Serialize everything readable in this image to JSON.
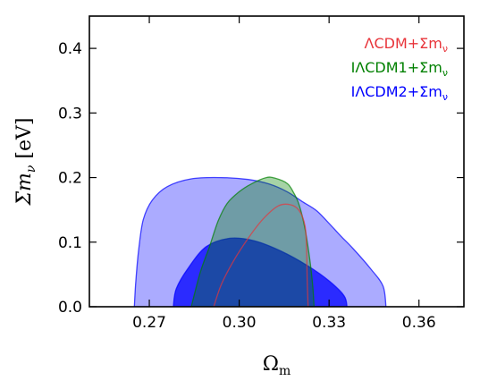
{
  "chart_data": {
    "type": "contour",
    "xlabel": "Ωm",
    "ylabel": "Σmν [eV]",
    "xlim": [
      0.25,
      0.375
    ],
    "ylim": [
      0.0,
      0.45
    ],
    "xticks": [
      0.27,
      0.3,
      0.33,
      0.36
    ],
    "xtick_labels": [
      "0.27",
      "0.30",
      "0.33",
      "0.36"
    ],
    "yticks": [
      0.0,
      0.1,
      0.2,
      0.3,
      0.4
    ],
    "ytick_labels": [
      "0.0",
      "0.1",
      "0.2",
      "0.3",
      "0.4"
    ],
    "grid": false,
    "legend_position": "top-right",
    "series": [
      {
        "name": "IΛCDM2+Σmν",
        "label_parts": [
          "IΛCDM2+Σm",
          "ν"
        ],
        "color": "#0000ff",
        "contours": [
          {
            "level": "95%",
            "opacity": 0.33,
            "points": [
              [
                0.265,
                0.0
              ],
              [
                0.2655,
                0.04
              ],
              [
                0.2665,
                0.09
              ],
              [
                0.268,
                0.135
              ],
              [
                0.271,
                0.165
              ],
              [
                0.276,
                0.186
              ],
              [
                0.284,
                0.198
              ],
              [
                0.294,
                0.2
              ],
              [
                0.303,
                0.197
              ],
              [
                0.31,
                0.19
              ],
              [
                0.316,
                0.178
              ],
              [
                0.321,
                0.163
              ],
              [
                0.326,
                0.148
              ],
              [
                0.331,
                0.124
              ],
              [
                0.334,
                0.109
              ],
              [
                0.338,
                0.09
              ],
              [
                0.344,
                0.058
              ],
              [
                0.348,
                0.032
              ],
              [
                0.349,
                0.0
              ]
            ]
          },
          {
            "level": "68%",
            "opacity": 0.75,
            "points": [
              [
                0.278,
                0.0
              ],
              [
                0.279,
                0.028
              ],
              [
                0.283,
                0.06
              ],
              [
                0.289,
                0.093
              ],
              [
                0.297,
                0.106
              ],
              [
                0.305,
                0.102
              ],
              [
                0.314,
                0.086
              ],
              [
                0.323,
                0.063
              ],
              [
                0.33,
                0.04
              ],
              [
                0.335,
                0.017
              ],
              [
                0.336,
                0.0
              ]
            ]
          }
        ]
      },
      {
        "name": "IΛCDM1+Σmν",
        "label_parts": [
          "IΛCDM1+Σm",
          "ν"
        ],
        "color": "#008000",
        "contours": [
          {
            "level": "95%",
            "opacity": 0.35,
            "points": [
              [
                0.284,
                0.0
              ],
              [
                0.287,
                0.053
              ],
              [
                0.29,
                0.092
              ],
              [
                0.293,
                0.133
              ],
              [
                0.296,
                0.16
              ],
              [
                0.3,
                0.178
              ],
              [
                0.304,
                0.19
              ],
              [
                0.309,
                0.2
              ],
              [
                0.312,
                0.199
              ],
              [
                0.316,
                0.191
              ],
              [
                0.318,
                0.178
              ],
              [
                0.32,
                0.158
              ],
              [
                0.322,
                0.12
              ],
              [
                0.3235,
                0.075
              ],
              [
                0.3245,
                0.035
              ],
              [
                0.325,
                0.0
              ]
            ]
          }
        ]
      },
      {
        "name": "ΛCDM+Σmν",
        "label_parts": [
          "ΛCDM+Σm",
          "ν"
        ],
        "color": "#e8343a",
        "contours": [
          {
            "level": "95%",
            "opacity": 0.0,
            "points": [
              [
                0.2915,
                0.0
              ],
              [
                0.294,
                0.034
              ],
              [
                0.298,
                0.07
              ],
              [
                0.303,
                0.106
              ],
              [
                0.308,
                0.136
              ],
              [
                0.313,
                0.156
              ],
              [
                0.317,
                0.158
              ],
              [
                0.32,
                0.149
              ],
              [
                0.322,
                0.125
              ],
              [
                0.3225,
                0.087
              ],
              [
                0.3227,
                0.04
              ],
              [
                0.323,
                0.0
              ]
            ]
          }
        ]
      }
    ]
  }
}
